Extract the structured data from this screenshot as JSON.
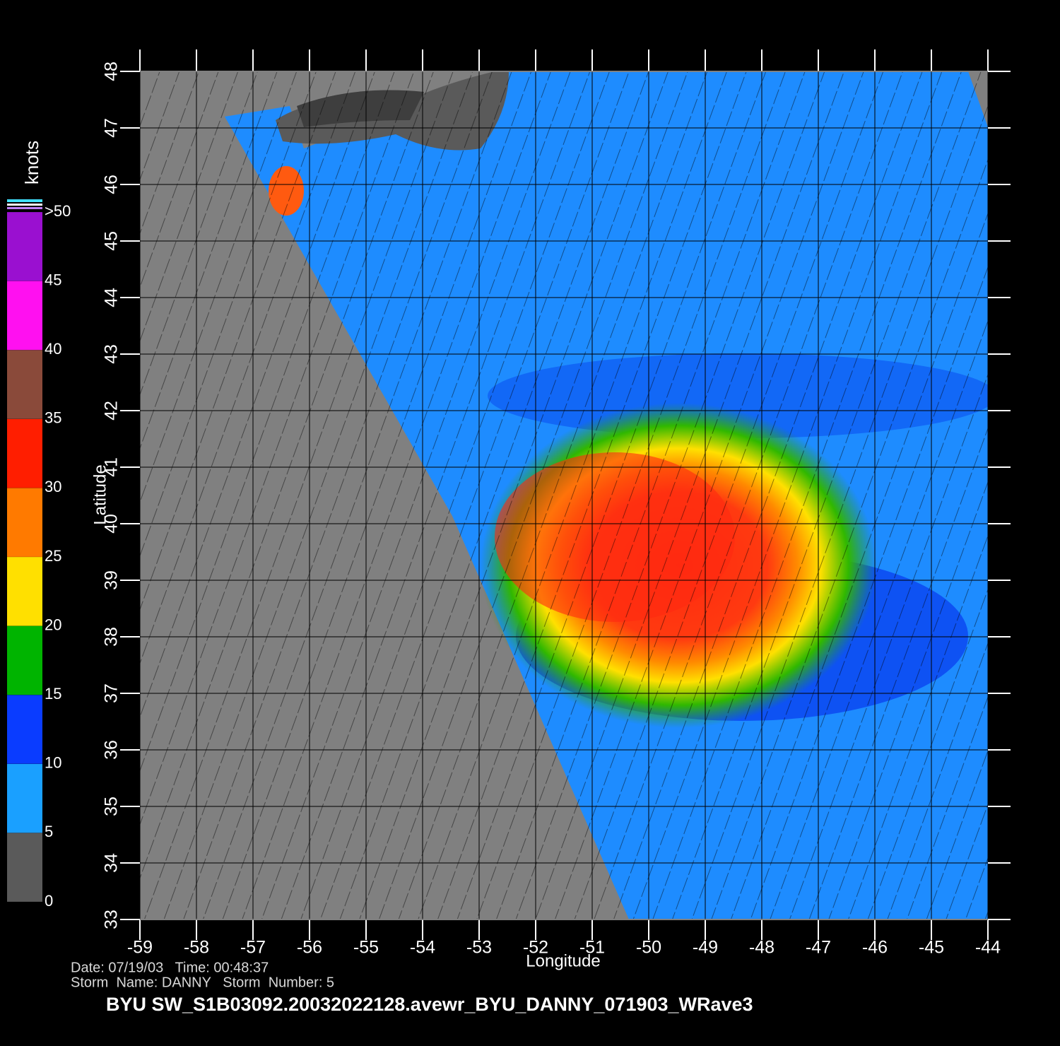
{
  "map": {
    "title": "BYU  SW_S1B03092.20032022128.avewr_BYU_DANNY_071903_WRave3",
    "info": [
      "Date: 07/19/03   Time: 00:48:37",
      "Storm  Name: DANNY   Storm  Number: 5"
    ],
    "x_label": "Longitude",
    "y_label": "Latitude",
    "xlim": [
      -59,
      -44
    ],
    "xticks": [
      -59,
      -58,
      -57,
      -56,
      -55,
      -54,
      -53,
      -52,
      -51,
      -50,
      -49,
      -48,
      -47,
      -46,
      -45,
      -44
    ],
    "ylim": [
      33,
      48
    ],
    "yticks": [
      33,
      34,
      35,
      36,
      37,
      38,
      39,
      40,
      41,
      42,
      43,
      44,
      45,
      46,
      47,
      48
    ],
    "grid": true,
    "colorbar": {
      "title": "knots",
      "lim": [
        0,
        50
      ],
      "ticks": [
        0,
        5,
        10,
        15,
        20,
        25,
        30,
        35,
        40,
        45,
        {
          "value": 50,
          "label": ">50"
        }
      ],
      "colors": [
        "#5a5a5a",
        "#1aa0ff",
        "#0a3cff",
        "#00b400",
        "#ffe000",
        "#ff7a00",
        "#ff1e00",
        "#8a4a3a",
        "#ff10f0",
        "#9a10d0"
      ]
    }
  }
}
